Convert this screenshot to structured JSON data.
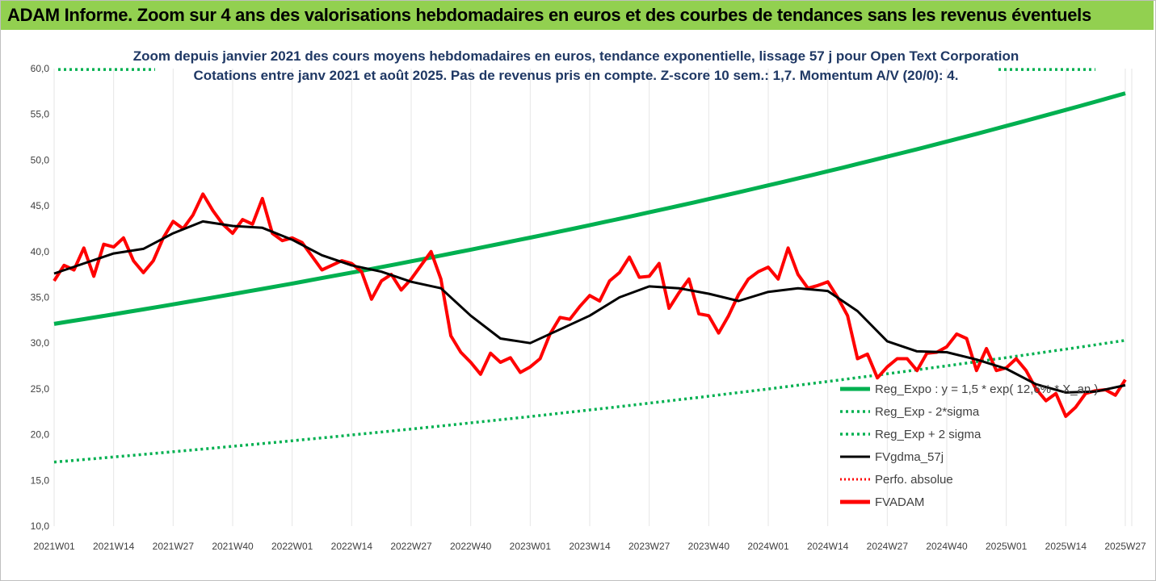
{
  "header": {
    "title": "ADAM Informe. Zoom sur 4 ans des valorisations hebdomadaires en euros et des courbes de tendances sans les revenus éventuels"
  },
  "chart_data": {
    "type": "line",
    "subtitle_lines": [
      "Zoom depuis janvier 2021 des cours moyens hebdomadaires en euros, tendance exponentielle, lissage 57 j pour Open Text Corporation",
      "Cotations entre janv 2021 et août 2025.  Pas de revenus pris en compte. Z-score 10 sem.: 1,7. Momentum A/V (20/0): 4."
    ],
    "ylim": [
      10,
      60
    ],
    "y_ticks": [
      "10,0",
      "15,0",
      "20,0",
      "25,0",
      "30,0",
      "35,0",
      "40,0",
      "45,0",
      "50,0",
      "55,0",
      "60,0"
    ],
    "x_tick_labels": [
      "2021W01",
      "2021W14",
      "2021W27",
      "2021W40",
      "2022W01",
      "2022W14",
      "2022W27",
      "2022W40",
      "2023W01",
      "2023W14",
      "2023W27",
      "2023W40",
      "2024W01",
      "2024W14",
      "2024W27",
      "2024W40",
      "2025W01",
      "2025W14",
      "2025W27"
    ],
    "grid": "vertical",
    "legend_position": "bottom-right",
    "colors": {
      "reg_expo": "#00b050",
      "reg_minus": "#00b050",
      "reg_plus": "#00b050",
      "fvgdma": "#000000",
      "perfo": "#ff0000",
      "fvadam": "#ff0000"
    },
    "series": [
      {
        "name": "Reg_Expo : y = 1,5 * exp( 12,6% * X_an )",
        "key": "reg_expo",
        "start": 32.1,
        "end": 57.3
      },
      {
        "name": "Reg_Exp - 2*sigma",
        "key": "reg_minus",
        "start": 17.0,
        "end": 30.3
      },
      {
        "name": "Reg_Exp + 2 sigma",
        "key": "reg_plus",
        "start": 59.9,
        "end": 59.9
      },
      {
        "name": "FVgdma_57j",
        "key": "fvgdma",
        "points": [
          [
            0,
            37.6
          ],
          [
            6,
            38.7
          ],
          [
            12,
            39.8
          ],
          [
            18,
            40.3
          ],
          [
            24,
            42.0
          ],
          [
            30,
            43.3
          ],
          [
            36,
            42.8
          ],
          [
            42,
            42.6
          ],
          [
            48,
            41.3
          ],
          [
            54,
            39.6
          ],
          [
            60,
            38.5
          ],
          [
            66,
            37.8
          ],
          [
            72,
            36.7
          ],
          [
            78,
            36.0
          ],
          [
            84,
            33.0
          ],
          [
            90,
            30.5
          ],
          [
            96,
            30.0
          ],
          [
            102,
            31.5
          ],
          [
            108,
            33.0
          ],
          [
            114,
            35.0
          ],
          [
            120,
            36.2
          ],
          [
            126,
            36.0
          ],
          [
            132,
            35.4
          ],
          [
            138,
            34.6
          ],
          [
            144,
            35.6
          ],
          [
            150,
            36.0
          ],
          [
            156,
            35.7
          ],
          [
            162,
            33.5
          ],
          [
            168,
            30.2
          ],
          [
            174,
            29.1
          ],
          [
            180,
            29.0
          ],
          [
            186,
            28.2
          ],
          [
            192,
            27.2
          ],
          [
            198,
            25.5
          ],
          [
            204,
            24.6
          ],
          [
            210,
            24.7
          ],
          [
            216,
            25.4
          ]
        ]
      },
      {
        "name": "Perfo. absolue",
        "key": "perfo",
        "points": []
      },
      {
        "name": "FVADAM",
        "key": "fvadam",
        "points": [
          [
            0,
            36.8
          ],
          [
            2,
            38.5
          ],
          [
            4,
            38.0
          ],
          [
            6,
            40.4
          ],
          [
            8,
            37.3
          ],
          [
            10,
            40.8
          ],
          [
            12,
            40.5
          ],
          [
            14,
            41.5
          ],
          [
            16,
            39.0
          ],
          [
            18,
            37.7
          ],
          [
            20,
            39.0
          ],
          [
            22,
            41.5
          ],
          [
            24,
            43.3
          ],
          [
            26,
            42.5
          ],
          [
            28,
            44.0
          ],
          [
            30,
            46.3
          ],
          [
            32,
            44.5
          ],
          [
            34,
            43.0
          ],
          [
            36,
            42.0
          ],
          [
            38,
            43.5
          ],
          [
            40,
            43.0
          ],
          [
            42,
            45.8
          ],
          [
            44,
            42.0
          ],
          [
            46,
            41.2
          ],
          [
            48,
            41.5
          ],
          [
            50,
            41.0
          ],
          [
            52,
            39.5
          ],
          [
            54,
            38.0
          ],
          [
            56,
            38.5
          ],
          [
            58,
            39.0
          ],
          [
            60,
            38.7
          ],
          [
            62,
            37.8
          ],
          [
            64,
            34.8
          ],
          [
            66,
            36.8
          ],
          [
            68,
            37.5
          ],
          [
            70,
            35.8
          ],
          [
            72,
            37.0
          ],
          [
            74,
            38.5
          ],
          [
            76,
            40.0
          ],
          [
            78,
            37.0
          ],
          [
            80,
            30.8
          ],
          [
            82,
            29.0
          ],
          [
            84,
            27.9
          ],
          [
            86,
            26.6
          ],
          [
            88,
            28.9
          ],
          [
            90,
            27.9
          ],
          [
            92,
            28.4
          ],
          [
            94,
            26.8
          ],
          [
            96,
            27.4
          ],
          [
            98,
            28.3
          ],
          [
            100,
            31.0
          ],
          [
            102,
            32.8
          ],
          [
            104,
            32.6
          ],
          [
            106,
            34.0
          ],
          [
            108,
            35.2
          ],
          [
            110,
            34.6
          ],
          [
            112,
            36.8
          ],
          [
            114,
            37.7
          ],
          [
            116,
            39.4
          ],
          [
            118,
            37.2
          ],
          [
            120,
            37.3
          ],
          [
            122,
            38.7
          ],
          [
            124,
            33.8
          ],
          [
            126,
            35.5
          ],
          [
            128,
            37.0
          ],
          [
            130,
            33.2
          ],
          [
            132,
            33.0
          ],
          [
            134,
            31.1
          ],
          [
            136,
            33.0
          ],
          [
            138,
            35.3
          ],
          [
            140,
            37.0
          ],
          [
            142,
            37.8
          ],
          [
            144,
            38.3
          ],
          [
            146,
            37.0
          ],
          [
            148,
            40.4
          ],
          [
            150,
            37.5
          ],
          [
            152,
            36.0
          ],
          [
            154,
            36.3
          ],
          [
            156,
            36.7
          ],
          [
            158,
            35.0
          ],
          [
            160,
            33.0
          ],
          [
            162,
            28.3
          ],
          [
            164,
            28.8
          ],
          [
            166,
            26.2
          ],
          [
            168,
            27.4
          ],
          [
            170,
            28.3
          ],
          [
            172,
            28.3
          ],
          [
            174,
            27.0
          ],
          [
            176,
            28.9
          ],
          [
            178,
            29.0
          ],
          [
            180,
            29.6
          ],
          [
            182,
            31.0
          ],
          [
            184,
            30.5
          ],
          [
            186,
            27.0
          ],
          [
            188,
            29.4
          ],
          [
            190,
            27.0
          ],
          [
            192,
            27.3
          ],
          [
            194,
            28.3
          ],
          [
            196,
            27.0
          ],
          [
            198,
            25.0
          ],
          [
            200,
            23.7
          ],
          [
            202,
            24.5
          ],
          [
            204,
            22.0
          ],
          [
            206,
            23.0
          ],
          [
            208,
            24.5
          ],
          [
            210,
            24.8
          ],
          [
            212,
            24.9
          ],
          [
            214,
            24.3
          ],
          [
            216,
            26.0
          ]
        ]
      }
    ]
  }
}
